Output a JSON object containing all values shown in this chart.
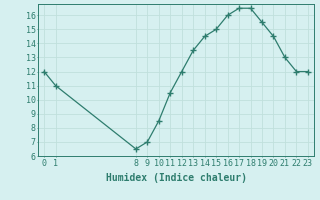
{
  "x": [
    0,
    1,
    8,
    9,
    10,
    11,
    12,
    13,
    14,
    15,
    16,
    17,
    18,
    19,
    20,
    21,
    22,
    23
  ],
  "y": [
    12,
    11,
    6.5,
    7,
    8.5,
    10.5,
    12,
    13.5,
    14.5,
    15,
    16,
    16.5,
    16.5,
    15.5,
    14.5,
    13,
    12,
    12
  ],
  "xlim": [
    -0.5,
    23.5
  ],
  "ylim": [
    6,
    16.8
  ],
  "xticks": [
    0,
    1,
    8,
    9,
    10,
    11,
    12,
    13,
    14,
    15,
    16,
    17,
    18,
    19,
    20,
    21,
    22,
    23
  ],
  "yticks": [
    6,
    7,
    8,
    9,
    10,
    11,
    12,
    13,
    14,
    15,
    16
  ],
  "xlabel": "Humidex (Indice chaleur)",
  "line_color": "#2e7d6e",
  "marker": "+",
  "marker_size": 4,
  "bg_color": "#d6f0f0",
  "grid_color": "#c0e0dc",
  "tick_fontsize": 6,
  "label_fontsize": 7
}
